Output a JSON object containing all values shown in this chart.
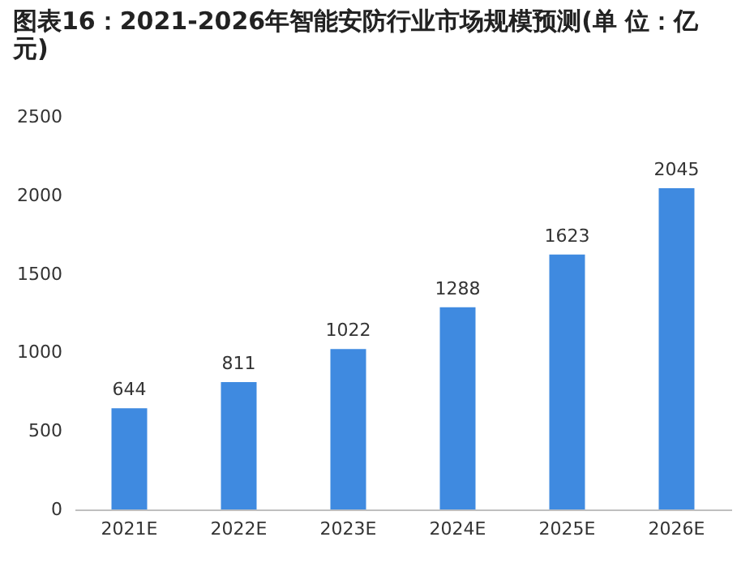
{
  "chart_data": {
    "type": "bar",
    "title": "图表16：2021-2026年智能安防行业市场规模预测(单 位：亿元)",
    "categories": [
      "2021E",
      "2022E",
      "2023E",
      "2024E",
      "2025E",
      "2026E"
    ],
    "values": [
      644,
      811,
      1022,
      1288,
      1623,
      2045
    ],
    "color": "#3f8ae0",
    "ylim": [
      0,
      2500
    ],
    "yticks": [
      0,
      500,
      1000,
      1500,
      2000,
      2500
    ],
    "data_labels": true
  }
}
